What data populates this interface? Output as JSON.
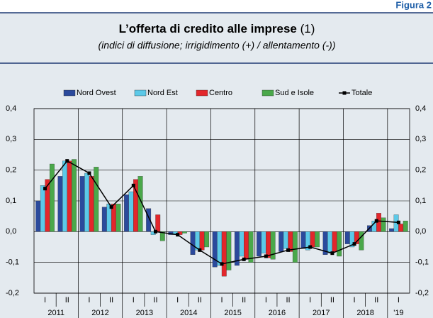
{
  "figure_label": "Figura 2",
  "chart_data": {
    "type": "bar",
    "title": "L’offerta di credito alle imprese",
    "title_note": "(1)",
    "subtitle": "(indici di diffusione; irrigidimento (+) / allentamento (-))",
    "categories": [
      "I",
      "II",
      "I",
      "II",
      "I",
      "II",
      "I",
      "II",
      "I",
      "II",
      "I",
      "II",
      "I",
      "II",
      "I",
      "II",
      "I"
    ],
    "year_labels": [
      "2011",
      null,
      "2012",
      null,
      "2013",
      null,
      "2014",
      null,
      "2015",
      null,
      "2016",
      null,
      "2017",
      null,
      "2018",
      null,
      "'19"
    ],
    "series": [
      {
        "name": "Nord Ovest",
        "color": "#2b4a9c",
        "values": [
          0.1,
          0.18,
          0.18,
          0.08,
          0.12,
          0.075,
          -0.01,
          -0.075,
          -0.115,
          -0.11,
          -0.08,
          -0.065,
          -0.055,
          -0.075,
          -0.04,
          0.02,
          0.01
        ]
      },
      {
        "name": "Nord Est",
        "color": "#5cc9e8",
        "values": [
          0.15,
          0.23,
          0.19,
          0.09,
          0.13,
          -0.01,
          -0.01,
          -0.06,
          -0.11,
          -0.08,
          -0.07,
          -0.055,
          -0.06,
          -0.07,
          -0.05,
          0.035,
          0.055
        ]
      },
      {
        "name": "Centro",
        "color": "#e3262b",
        "values": [
          0.17,
          0.23,
          0.18,
          0.09,
          0.17,
          0.055,
          -0.01,
          -0.06,
          -0.145,
          -0.09,
          -0.085,
          -0.065,
          -0.05,
          -0.065,
          -0.04,
          0.06,
          0.025
        ]
      },
      {
        "name": "Sud e Isole",
        "color": "#4aa84a",
        "values": [
          0.22,
          0.235,
          0.21,
          0.09,
          0.18,
          -0.03,
          -0.005,
          -0.05,
          -0.125,
          -0.1,
          -0.09,
          -0.1,
          -0.05,
          -0.08,
          -0.06,
          0.045,
          0.035
        ]
      },
      {
        "name": "Totale",
        "color": "#000000",
        "type": "line",
        "values": [
          0.14,
          0.23,
          0.19,
          0.08,
          0.15,
          0.0,
          -0.01,
          -0.06,
          -0.105,
          -0.09,
          -0.08,
          -0.06,
          -0.05,
          -0.07,
          -0.04,
          0.035,
          0.03
        ]
      }
    ],
    "ylim": [
      -0.2,
      0.4
    ],
    "yticks": [
      {
        "value": -0.2,
        "label": "-0,2"
      },
      {
        "value": -0.1,
        "label": "-0,1"
      },
      {
        "value": 0,
        "label": "0,0"
      },
      {
        "value": 0.1,
        "label": "0,1"
      },
      {
        "value": 0.2,
        "label": "0,2"
      },
      {
        "value": 0.3,
        "label": "0,3"
      },
      {
        "value": 0.4,
        "label": "0,4"
      }
    ],
    "grid": true
  }
}
